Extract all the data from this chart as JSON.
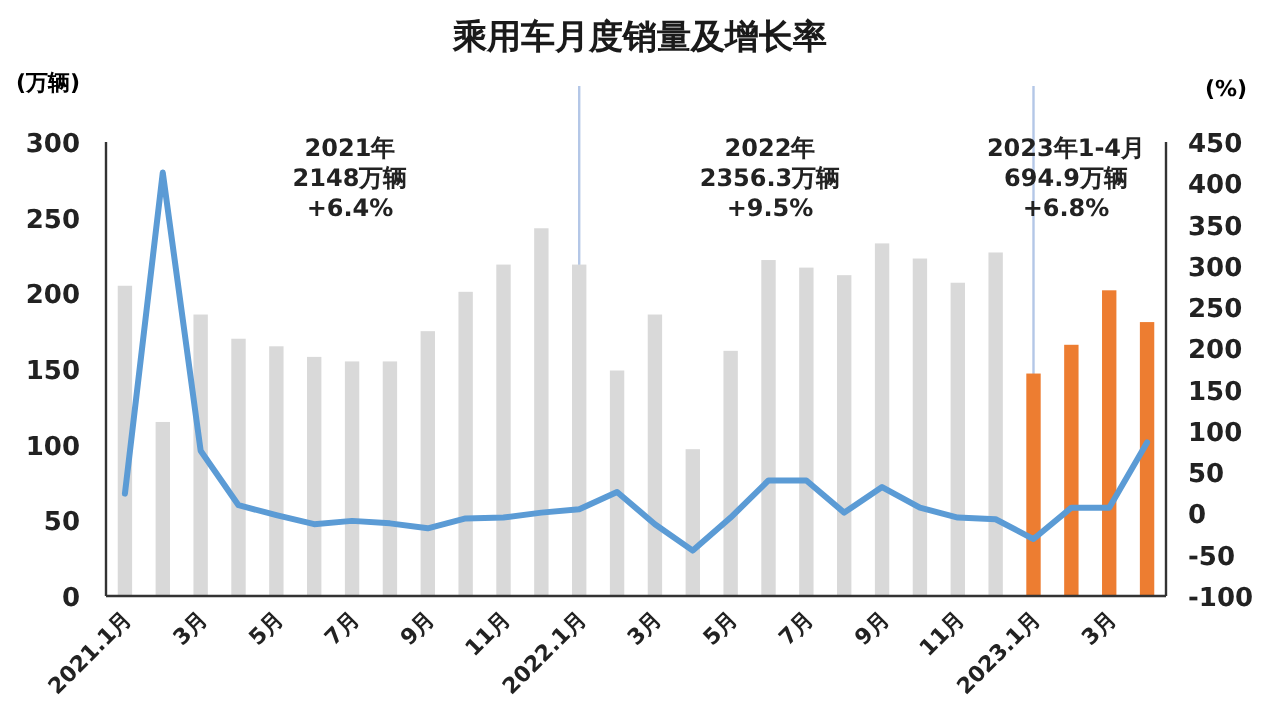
{
  "chart_data": {
    "type": "bar",
    "title": "乘用车月度销量及增长率",
    "ylabel": "(万辆)",
    "y2label": "(%)",
    "categories": [
      "2021.1月",
      null,
      "3月",
      null,
      "5月",
      null,
      "7月",
      null,
      "9月",
      null,
      "11月",
      null,
      "2022.1月",
      null,
      "3月",
      null,
      "5月",
      null,
      "7月",
      null,
      "9月",
      null,
      "11月",
      null,
      "2023.1月",
      null,
      "3月",
      null
    ],
    "series": [
      {
        "colors": [
          "#d9d9d9",
          "#d9d9d9",
          "#d9d9d9",
          "#d9d9d9",
          "#d9d9d9",
          "#d9d9d9",
          "#d9d9d9",
          "#d9d9d9",
          "#d9d9d9",
          "#d9d9d9",
          "#d9d9d9",
          "#d9d9d9",
          "#d9d9d9",
          "#d9d9d9",
          "#d9d9d9",
          "#d9d9d9",
          "#d9d9d9",
          "#d9d9d9",
          "#d9d9d9",
          "#d9d9d9",
          "#d9d9d9",
          "#d9d9d9",
          "#d9d9d9",
          "#d9d9d9",
          "#ed7d31",
          "#ed7d31",
          "#ed7d31",
          "#ed7d31"
        ],
        "values": [
          205,
          115,
          186,
          170,
          165,
          158,
          155,
          155,
          175,
          201,
          219,
          243,
          219,
          149,
          186,
          97,
          162,
          222,
          217,
          212,
          233,
          223,
          207,
          227,
          147,
          166,
          202,
          181
        ]
      },
      {
        "type": "line",
        "axis": "y2",
        "color": "#5b9bd5",
        "values": [
          24,
          413,
          76,
          10,
          -2,
          -13,
          -9,
          -12,
          -18,
          -6,
          -5,
          1,
          5,
          26,
          -13,
          -45,
          -5,
          40,
          40,
          1,
          32,
          7,
          -5,
          -7,
          -31,
          7,
          7,
          86
        ]
      }
    ],
    "ylim": [
      0,
      300
    ],
    "yticks": [
      0,
      50,
      100,
      150,
      200,
      250,
      300
    ],
    "y2lim": [
      -100,
      450
    ],
    "y2ticks": [
      -100,
      -50,
      0,
      50,
      100,
      150,
      200,
      250,
      300,
      350,
      400,
      450
    ],
    "ref_lines": [
      {
        "axis": "x",
        "value": "2022.1月",
        "color": "#b4c7e7"
      },
      {
        "axis": "x",
        "value": "2023.1月",
        "color": "#b4c7e7"
      }
    ],
    "annotations": [
      "2021年\n2148万辆\n+6.4%",
      "2022年\n2356.3万辆\n+9.5%",
      "2023年1-4月\n694.9万辆\n+6.8%"
    ],
    "grid": false,
    "marker": "none",
    "line_style": "solid"
  }
}
